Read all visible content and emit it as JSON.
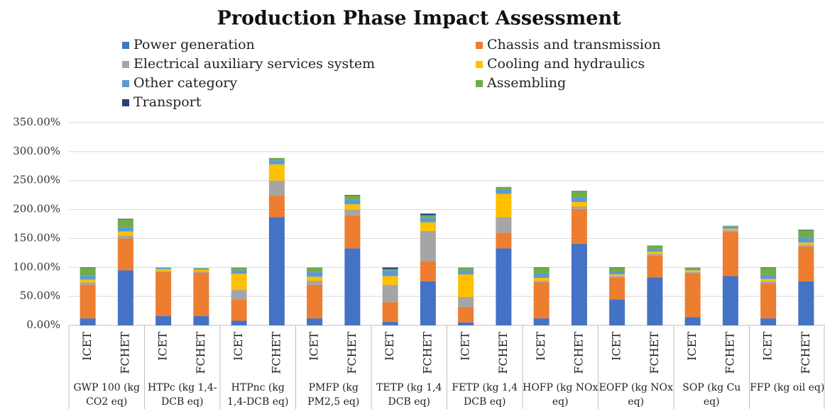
{
  "chart_data": {
    "type": "stacked_bar",
    "title": "Production Phase Impact Assessment",
    "groups": [
      "GWP 100 (kg CO2 eq)",
      "HTPc (kg 1,4-DCB eq)",
      "HTPnc (kg 1,4-DCB eq)",
      "PMFP (kg PM2,5 eq)",
      "TETP (kg 1,4 DCB eq)",
      "FETP (kg 1,4 DCB eq)",
      "HOFP (kg NOx eq)",
      "EOFP (kg NOx eq)",
      "SOP (kg Cu eq)",
      "FFP (kg oil eq)"
    ],
    "categories": [
      "ICET",
      "FCHET",
      "ICET",
      "FCHET",
      "ICET",
      "FCHET",
      "ICET",
      "FCHET",
      "ICET",
      "FCHET",
      "ICET",
      "FCHET",
      "ICET",
      "FCHET",
      "ICET",
      "FCHET",
      "ICET",
      "FCHET",
      "ICET",
      "FCHET"
    ],
    "series": [
      {
        "name": "Power generation",
        "color": "#4472c4",
        "values": [
          12,
          95,
          16,
          16,
          8,
          187,
          12,
          133,
          6,
          76,
          5,
          133,
          12,
          141,
          45,
          83,
          14,
          85,
          12,
          76
        ]
      },
      {
        "name": "Chassis and transmission",
        "color": "#ed7d31",
        "values": [
          58,
          55,
          76,
          75,
          36,
          37,
          58,
          57,
          34,
          35,
          27,
          27,
          62,
          60,
          38,
          37,
          76,
          76,
          61,
          60
        ]
      },
      {
        "name": "Electrical auxiliary services system",
        "color": "#a5a5a5",
        "values": [
          4,
          5,
          2,
          2,
          17,
          26,
          7,
          10,
          30,
          52,
          17,
          27,
          3,
          4,
          2,
          3,
          2,
          3,
          3,
          3
        ]
      },
      {
        "name": "Cooling and hydraulics",
        "color": "#ffc000",
        "values": [
          5,
          7,
          3,
          3,
          28,
          28,
          7,
          9,
          15,
          15,
          39,
          40,
          5,
          8,
          3,
          4,
          3,
          3,
          4,
          4
        ]
      },
      {
        "name": "Other category",
        "color": "#5b9bd5",
        "values": [
          7,
          7,
          2,
          2,
          6,
          7,
          8,
          8,
          10,
          9,
          7,
          8,
          8,
          9,
          5,
          5,
          3,
          4,
          7,
          8
        ]
      },
      {
        "name": "Assembling",
        "color": "#70ad47",
        "values": [
          13,
          14,
          1,
          1,
          5,
          4,
          8,
          7,
          2,
          3,
          5,
          4,
          9,
          9,
          6,
          6,
          2,
          1,
          12,
          13
        ]
      },
      {
        "name": "Transport",
        "color": "#264478",
        "values": [
          1,
          1,
          0,
          0,
          0,
          0,
          0,
          1,
          3,
          3,
          0,
          0,
          1,
          1,
          1,
          0,
          0,
          0,
          1,
          1
        ]
      }
    ],
    "ylim": [
      0,
      350
    ],
    "yticks": [
      {
        "value": 0,
        "label": "0.00%"
      },
      {
        "value": 50,
        "label": "50.00%"
      },
      {
        "value": 100,
        "label": "100.00%"
      },
      {
        "value": 150,
        "label": "150.00%"
      },
      {
        "value": 200,
        "label": "200.00%"
      },
      {
        "value": 250,
        "label": "250.00%"
      },
      {
        "value": 300,
        "label": "300.00%"
      },
      {
        "value": 350,
        "label": "350.00%"
      }
    ],
    "grid": true
  }
}
